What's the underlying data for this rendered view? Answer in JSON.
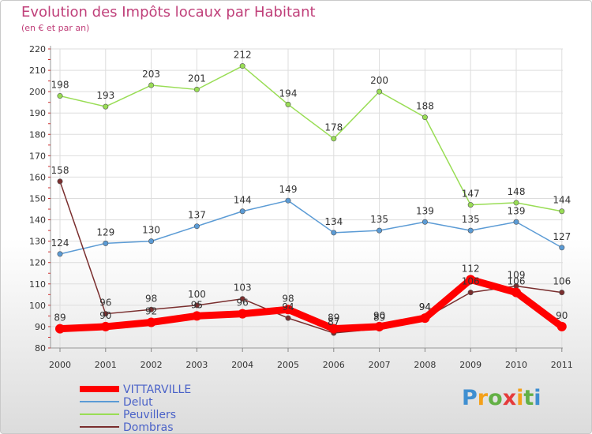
{
  "title": "Evolution des Impôts locaux par Habitant",
  "subtitle": "(en € et par an)",
  "logo": {
    "text": "Proxiti",
    "letters": [
      "P",
      "r",
      "o",
      "x",
      "i",
      "t",
      "i"
    ]
  },
  "colors": {
    "title": "#c0407a",
    "vittarville": "#ff0000",
    "delut": "#5b9bd5",
    "peuvillers": "#99dd55",
    "dombras": "#7a2e2e",
    "grid": "#dddddd"
  },
  "chart_data": {
    "type": "line",
    "title": "Evolution des Impôts locaux par Habitant",
    "subtitle": "(en € et par an)",
    "x": [
      "2000",
      "2001",
      "2002",
      "2003",
      "2004",
      "2005",
      "2006",
      "2007",
      "2008",
      "2009",
      "2010",
      "2011"
    ],
    "ylim": [
      80,
      220
    ],
    "yticks": [
      80,
      90,
      100,
      110,
      120,
      130,
      140,
      150,
      160,
      170,
      180,
      190,
      200,
      210,
      220
    ],
    "grid": true,
    "legend_position": "bottom-left",
    "series": [
      {
        "name": "VITTARVILLE",
        "color": "#ff0000",
        "values": [
          89,
          90,
          92,
          95,
          96,
          98,
          89,
          90,
          94,
          112,
          106,
          90
        ]
      },
      {
        "name": "Delut",
        "color": "#5b9bd5",
        "values": [
          124,
          129,
          130,
          137,
          144,
          149,
          134,
          135,
          139,
          135,
          139,
          127
        ]
      },
      {
        "name": "Peuvillers",
        "color": "#99dd55",
        "values": [
          198,
          193,
          203,
          201,
          212,
          194,
          178,
          200,
          188,
          147,
          148,
          144
        ]
      },
      {
        "name": "Dombras",
        "color": "#7a2e2e",
        "values": [
          158,
          96,
          98,
          100,
          103,
          94,
          87,
          89,
          94,
          106,
          109,
          106
        ]
      }
    ]
  }
}
